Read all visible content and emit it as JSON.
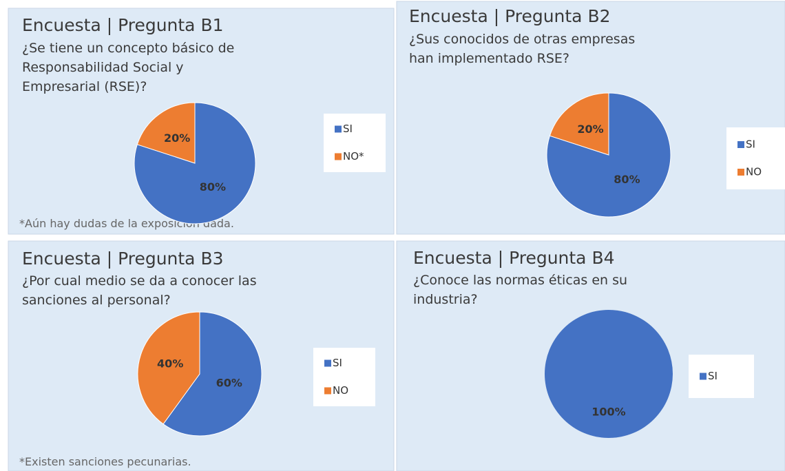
{
  "chart_data": [
    {
      "type": "pie",
      "title": "Encuesta | Pregunta B1",
      "subtitle": [
        "¿Se tiene un concepto básico de",
        "Responsabilidad Social y",
        "Empresarial (RSE)?"
      ],
      "categories": [
        "SI",
        "NO*"
      ],
      "values": [
        80,
        20
      ],
      "value_labels": [
        "80%",
        "20%"
      ],
      "colors": [
        "#4472c4",
        "#ed7d31"
      ],
      "note": "*Aún hay dudas de la exposición dada.",
      "legend": "right"
    },
    {
      "type": "pie",
      "title": "Encuesta | Pregunta B2",
      "subtitle": [
        "¿Sus conocidos de otras empresas",
        "han implementado RSE?"
      ],
      "categories": [
        "SI",
        "NO"
      ],
      "values": [
        80,
        20
      ],
      "value_labels": [
        "80%",
        "20%"
      ],
      "colors": [
        "#4472c4",
        "#ed7d31"
      ],
      "legend": "right"
    },
    {
      "type": "pie",
      "title": "Encuesta | Pregunta B3",
      "subtitle": [
        "¿Por cual medio se da a conocer las",
        "sanciones al personal?"
      ],
      "categories": [
        "SI",
        "NO"
      ],
      "values": [
        60,
        40
      ],
      "value_labels": [
        "60%",
        "40%"
      ],
      "colors": [
        "#4472c4",
        "#ed7d31"
      ],
      "note": "*Existen sanciones pecunarias.",
      "legend": "right"
    },
    {
      "type": "pie",
      "title": "Encuesta | Pregunta B4",
      "subtitle": [
        "¿Conoce las normas éticas en su",
        "industria?"
      ],
      "categories": [
        "SI"
      ],
      "values": [
        100
      ],
      "value_labels": [
        "100%"
      ],
      "colors": [
        "#4472c4"
      ],
      "legend": "right"
    }
  ]
}
